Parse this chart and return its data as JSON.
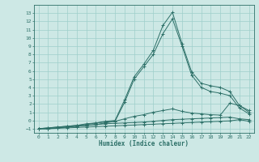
{
  "xlabel": "Humidex (Indice chaleur)",
  "ylabel": "",
  "background_color": "#cde8e5",
  "grid_color": "#9ecfcb",
  "line_color": "#2d7068",
  "xlim": [
    -0.5,
    22.5
  ],
  "ylim": [
    -1.5,
    14
  ],
  "xticks": [
    0,
    1,
    2,
    3,
    4,
    5,
    6,
    7,
    8,
    9,
    10,
    11,
    12,
    13,
    14,
    15,
    16,
    17,
    18,
    19,
    20,
    21,
    22
  ],
  "yticks": [
    -1,
    0,
    1,
    2,
    3,
    4,
    5,
    6,
    7,
    8,
    9,
    10,
    11,
    12,
    13
  ],
  "series_y": [
    [
      -1,
      -1,
      -0.95,
      -0.9,
      -0.85,
      -0.8,
      -0.75,
      -0.7,
      -0.65,
      -0.6,
      -0.55,
      -0.5,
      -0.45,
      -0.4,
      -0.35,
      -0.3,
      -0.25,
      -0.2,
      -0.15,
      -0.1,
      -0.05,
      0.1,
      -0.1
    ],
    [
      -1,
      -1,
      -0.9,
      -0.8,
      -0.7,
      -0.6,
      -0.5,
      -0.4,
      -0.35,
      -0.3,
      -0.25,
      -0.2,
      -0.1,
      0,
      0.1,
      0.15,
      0.2,
      0.25,
      0.3,
      0.35,
      0.4,
      0.2,
      0.1
    ],
    [
      -1,
      -1,
      -0.9,
      -0.8,
      -0.7,
      -0.6,
      -0.5,
      -0.3,
      -0.1,
      0.2,
      0.5,
      0.7,
      1.0,
      1.2,
      1.4,
      1.1,
      0.9,
      0.8,
      0.7,
      0.65,
      2.1,
      1.8,
      1.2
    ],
    [
      -1,
      -0.9,
      -0.8,
      -0.7,
      -0.6,
      -0.5,
      -0.3,
      -0.2,
      -0.1,
      2.2,
      5.0,
      6.5,
      8.0,
      10.5,
      12.3,
      9.0,
      5.5,
      4.0,
      3.5,
      3.3,
      3.0,
      1.5,
      0.8
    ],
    [
      -1,
      -0.9,
      -0.8,
      -0.7,
      -0.6,
      -0.4,
      -0.3,
      -0.1,
      0.0,
      2.5,
      5.3,
      6.8,
      8.5,
      11.5,
      13.1,
      9.3,
      5.9,
      4.5,
      4.2,
      4.0,
      3.5,
      1.8,
      1.0
    ]
  ]
}
